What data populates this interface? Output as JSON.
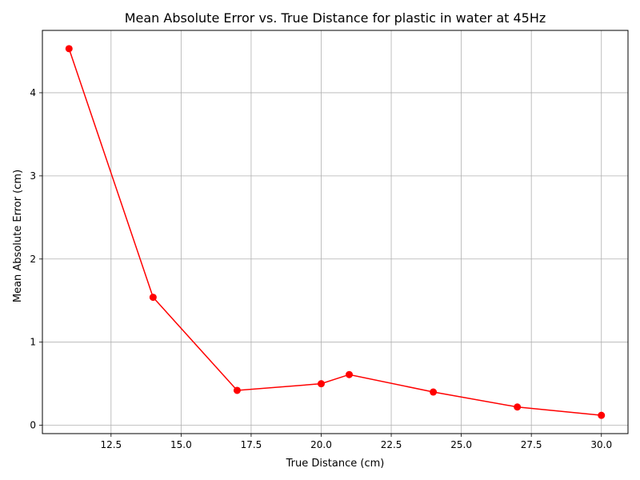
{
  "chart_data": {
    "type": "line",
    "title": "Mean Absolute Error vs. True Distance for plastic in water at 45Hz",
    "xlabel": "True Distance (cm)",
    "ylabel": "Mean Absolute Error (cm)",
    "xlim": [
      10.05,
      30.95
    ],
    "ylim": [
      -0.1,
      4.75
    ],
    "xticks": [
      12.5,
      15.0,
      17.5,
      20.0,
      22.5,
      25.0,
      27.5,
      30.0
    ],
    "xtick_labels": [
      "12.5",
      "15.0",
      "17.5",
      "20.0",
      "22.5",
      "25.0",
      "27.5",
      "30.0"
    ],
    "yticks": [
      0,
      1,
      2,
      3,
      4
    ],
    "ytick_labels": [
      "0",
      "1",
      "2",
      "3",
      "4"
    ],
    "grid": true,
    "series": [
      {
        "color": "#ff0000",
        "marker": "circle",
        "x": [
          11,
          14,
          17,
          20,
          21,
          24,
          27,
          30
        ],
        "y": [
          4.53,
          1.54,
          0.42,
          0.5,
          0.61,
          0.4,
          0.22,
          0.12
        ]
      }
    ]
  }
}
